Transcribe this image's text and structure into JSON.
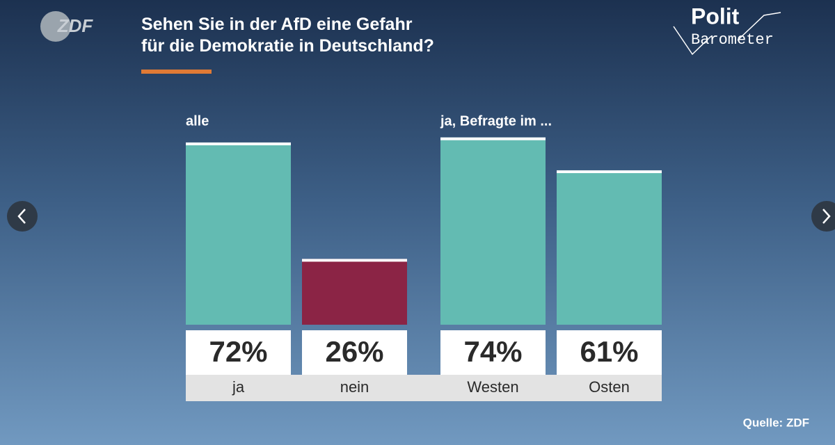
{
  "chart_data": {
    "type": "bar",
    "title": "Sehen Sie in der AfD eine Gefahr für die Demokratie in Deutschland?",
    "brand": "ZDF",
    "logo": [
      "Polit",
      "Barometer"
    ],
    "group_labels": [
      "alle",
      "ja, Befragte im ..."
    ],
    "categories": [
      "ja",
      "nein",
      "Westen",
      "Osten"
    ],
    "values": [
      72,
      26,
      74,
      61
    ],
    "value_labels": [
      "72%",
      "26%",
      "74%",
      "61%"
    ],
    "colors": [
      "#63bbb2",
      "#8b2445",
      "#63bbb2",
      "#63bbb2"
    ],
    "source": "Quelle: ZDF"
  }
}
